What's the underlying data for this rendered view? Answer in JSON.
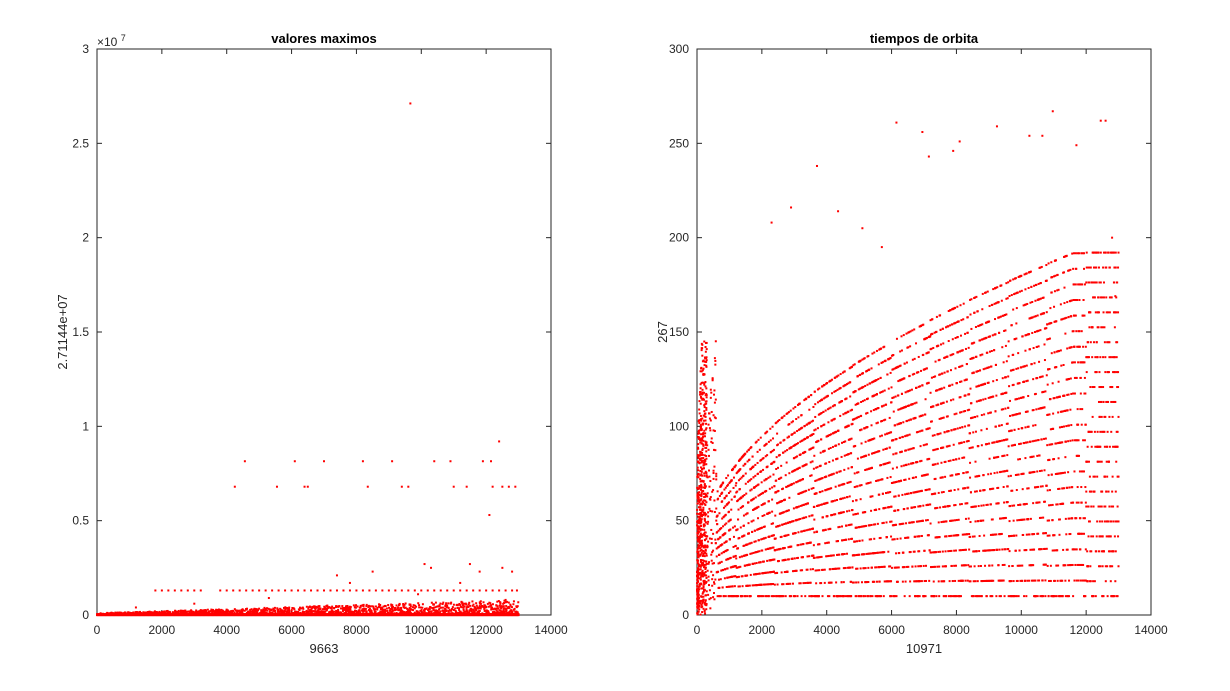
{
  "figure": {
    "background": "#ffffff",
    "marker_color": "#ff0000"
  },
  "chart_data": [
    {
      "type": "scatter",
      "title": "valores maximos",
      "xlabel": "9663",
      "ylabel": "2.7114e+07",
      "ylabel_display": "2.71144e+07",
      "xlim": [
        0,
        14000
      ],
      "ylim": [
        0,
        30000000
      ],
      "xticks": [
        0,
        2000,
        4000,
        6000,
        8000,
        10000,
        12000,
        14000
      ],
      "xtick_labels": [
        "0",
        "2000",
        "4000",
        "6000",
        "8000",
        "10000",
        "12000",
        "14000"
      ],
      "yticks": [
        0,
        5000000,
        10000000,
        15000000,
        20000000,
        25000000,
        30000000
      ],
      "ytick_labels": [
        "0",
        "0.5",
        "1",
        "1.5",
        "2",
        "2.5",
        "3"
      ],
      "y_exponent": {
        "base": "×10",
        "power": "7"
      },
      "grid": false,
      "series": [
        {
          "color": "#ff0000",
          "marker": "point",
          "x": [
            9663,
            4250,
            4560,
            5550,
            6100,
            6400,
            6500,
            7000,
            8200,
            8350,
            9100,
            9400,
            9600,
            10400,
            10900,
            11000,
            11400,
            11900,
            12100,
            12200,
            12400,
            12500,
            12700,
            12900,
            12150,
            1800,
            2000,
            2200,
            2400,
            2600,
            2800,
            3000,
            3200,
            3800,
            4000,
            4200,
            4400,
            4600,
            4800,
            5000,
            5200,
            5400,
            5600,
            5800,
            6000,
            6200,
            6400,
            6600,
            6800,
            7000,
            7200,
            7400,
            7600,
            7800,
            8000,
            8200,
            8400,
            8600,
            8800,
            9000,
            9200,
            9400,
            9600,
            9800,
            10000,
            10200,
            10400,
            10600,
            10800,
            11000,
            11200,
            11400,
            11600,
            11800,
            12000,
            12200,
            12400,
            12600,
            12800,
            12950,
            7400,
            7800,
            8500,
            10100,
            10300,
            11200,
            11500,
            11800,
            12500,
            12800,
            1200,
            3000,
            5300,
            7100,
            9900,
            12600
          ],
          "y": [
            27114000,
            6800000,
            8150000,
            6800000,
            8150000,
            6800000,
            6800000,
            8150000,
            8150000,
            6800000,
            8150000,
            6800000,
            6800000,
            8150000,
            8150000,
            6800000,
            6800000,
            8150000,
            5300000,
            6800000,
            9200000,
            6800000,
            6800000,
            6800000,
            8150000,
            1300000,
            1300000,
            1300000,
            1300000,
            1300000,
            1300000,
            1300000,
            1300000,
            1300000,
            1300000,
            1300000,
            1300000,
            1300000,
            1300000,
            1300000,
            1300000,
            1300000,
            1300000,
            1300000,
            1300000,
            1300000,
            1300000,
            1300000,
            1300000,
            1300000,
            1300000,
            1300000,
            1300000,
            1300000,
            1300000,
            1300000,
            1300000,
            1300000,
            1300000,
            1300000,
            1300000,
            1300000,
            1300000,
            1300000,
            1300000,
            1300000,
            1300000,
            1300000,
            1300000,
            1300000,
            1300000,
            1300000,
            1300000,
            1300000,
            1300000,
            1300000,
            1300000,
            1300000,
            1300000,
            1300000,
            2100000,
            1700000,
            2300000,
            2700000,
            2500000,
            1700000,
            2700000,
            2300000,
            2500000,
            2300000,
            400000,
            600000,
            900000,
            500000,
            1100000,
            800000
          ]
        }
      ],
      "dense_band": {
        "x_range": [
          0,
          13000
        ],
        "y_top": [
          0,
          900000
        ]
      }
    },
    {
      "type": "scatter",
      "title": "tiempos de orbita",
      "xlabel": "10971",
      "ylabel": "267",
      "xlim": [
        0,
        14000
      ],
      "ylim": [
        0,
        300
      ],
      "xticks": [
        0,
        2000,
        4000,
        6000,
        8000,
        10000,
        12000,
        14000
      ],
      "xtick_labels": [
        "0",
        "2000",
        "4000",
        "6000",
        "8000",
        "10000",
        "12000",
        "14000"
      ],
      "yticks": [
        0,
        50,
        100,
        150,
        200,
        250,
        300
      ],
      "ytick_labels": [
        "0",
        "50",
        "100",
        "150",
        "200",
        "250",
        "300"
      ],
      "grid": false,
      "series": [
        {
          "color": "#ff0000",
          "marker": "point",
          "x": [
            10971,
            6150,
            6950,
            8100,
            9250,
            10250,
            10650,
            11700,
            12450,
            12600,
            7150,
            7900,
            12800,
            12900,
            3700,
            4350,
            5100,
            5700,
            2300,
            2900
          ],
          "y": [
            267,
            261,
            256,
            251,
            259,
            254,
            254,
            249,
            262,
            262,
            243,
            246,
            200,
            169,
            238,
            214,
            205,
            195,
            208,
            216
          ]
        }
      ],
      "dense_band": {
        "x_range": [
          0,
          13000
        ],
        "y_range": [
          0,
          200
        ]
      }
    }
  ]
}
